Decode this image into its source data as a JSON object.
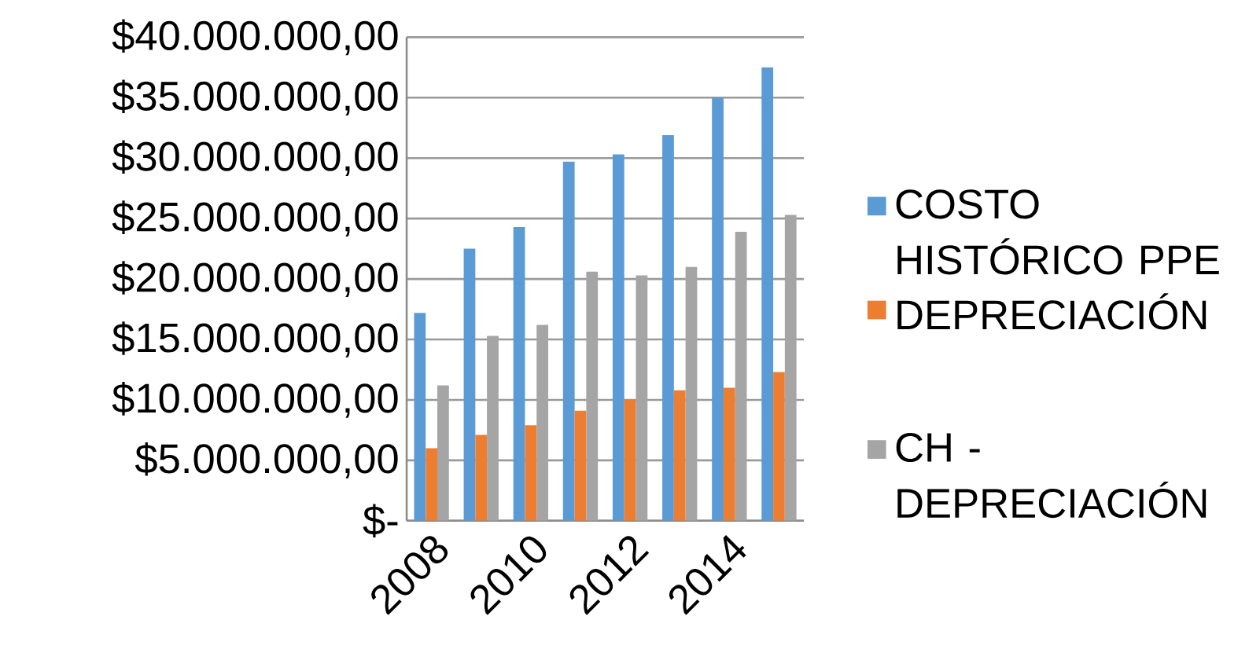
{
  "chart_data": {
    "type": "bar",
    "categories": [
      "2008",
      null,
      "2010",
      null,
      "2012",
      null,
      "2014",
      null
    ],
    "series": [
      {
        "name": "COSTO HISTÓRICO PPE",
        "color": "#5b9bd5",
        "values": [
          17200000,
          22500000,
          24300000,
          29700000,
          30300000,
          31900000,
          35000000,
          37500000
        ]
      },
      {
        "name": "DEPRECIACIÓN",
        "color": "#ed7d31",
        "values": [
          6000000,
          7100000,
          7900000,
          9100000,
          10000000,
          10800000,
          11000000,
          12300000
        ]
      },
      {
        "name": "CH - DEPRECIACIÓN",
        "color": "#a5a5a5",
        "values": [
          11200000,
          15300000,
          16200000,
          20600000,
          20300000,
          21000000,
          23900000,
          25300000
        ]
      }
    ],
    "ylim": [
      0,
      40000000
    ],
    "yticks": [
      {
        "value": 0,
        "label": "$-"
      },
      {
        "value": 5000000,
        "label": "$5.000.000,00"
      },
      {
        "value": 10000000,
        "label": "$10.000.000,00"
      },
      {
        "value": 15000000,
        "label": "$15.000.000,00"
      },
      {
        "value": 20000000,
        "label": "$20.000.000,00"
      },
      {
        "value": 25000000,
        "label": "$25.000.000,00"
      },
      {
        "value": 30000000,
        "label": "$30.000.000,00"
      },
      {
        "value": 35000000,
        "label": "$35.000.000,00"
      },
      {
        "value": 40000000,
        "label": "$40.000.000,00"
      }
    ],
    "grid": "y",
    "legend": "right"
  }
}
